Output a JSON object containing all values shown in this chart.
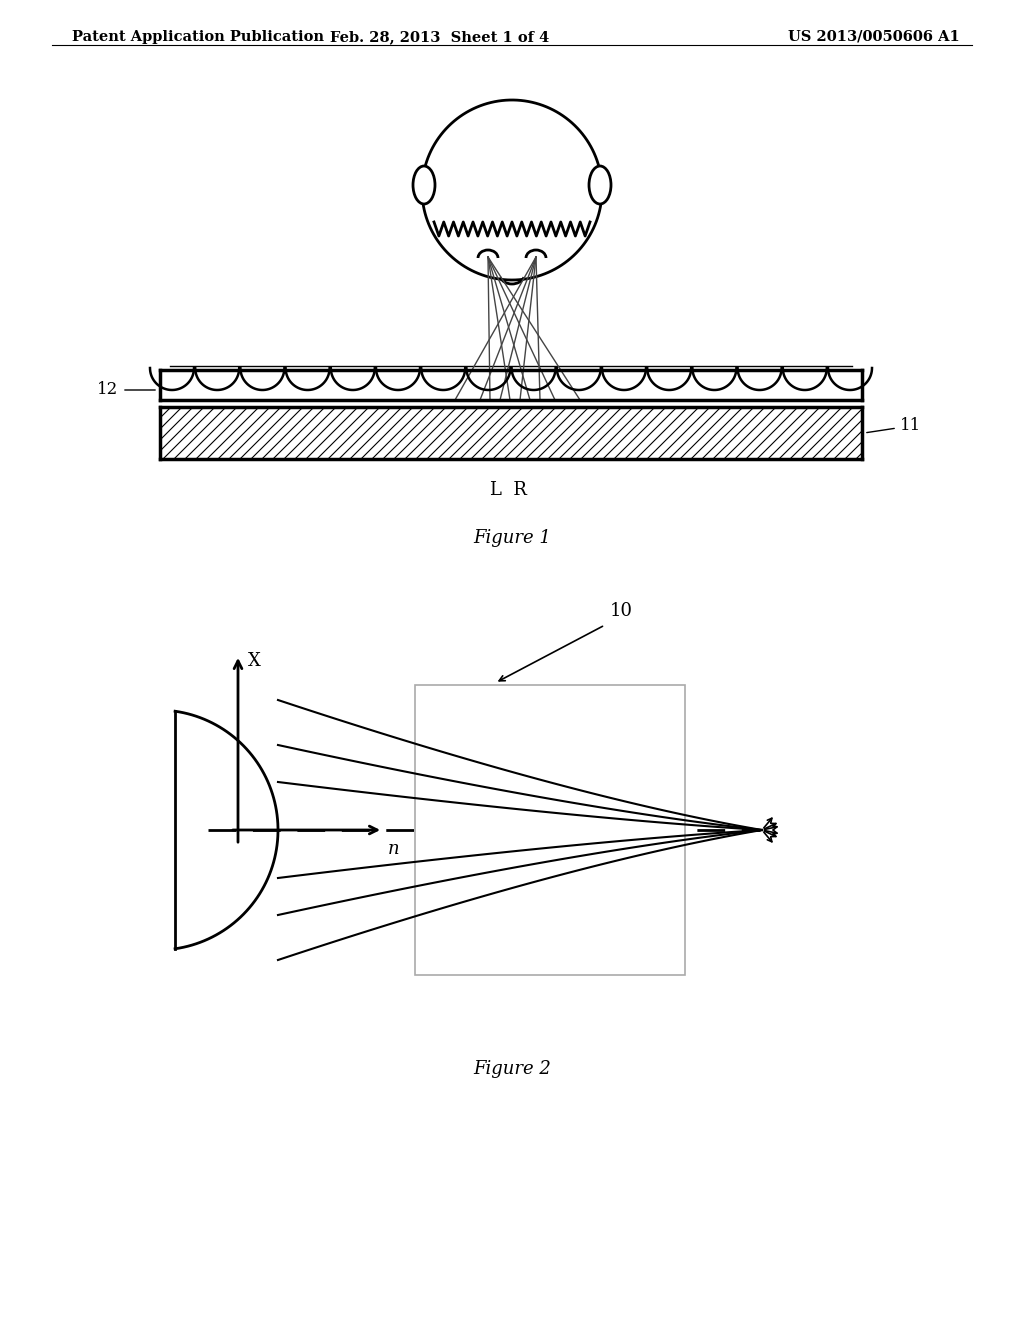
{
  "header_left": "Patent Application Publication",
  "header_mid": "Feb. 28, 2013  Sheet 1 of 4",
  "header_right": "US 2013/0050606 A1",
  "fig1_caption": "Figure 1",
  "fig2_caption": "Figure 2",
  "label_12": "12",
  "label_11": "11",
  "label_LR": "L  R",
  "label_10": "10",
  "label_X": "X",
  "label_n": "n",
  "bg_color": "#ffffff",
  "line_color": "#000000"
}
